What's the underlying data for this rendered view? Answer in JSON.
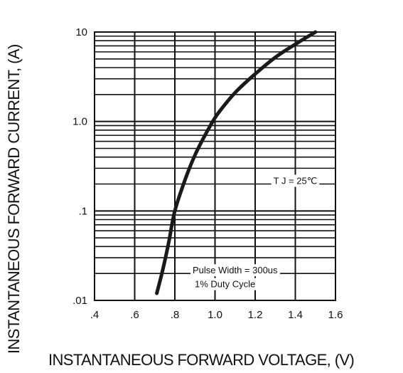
{
  "chart_data": {
    "type": "line",
    "title": "",
    "xlabel": "INSTANTANEOUS FORWARD VOLTAGE, (V)",
    "ylabel": "INSTANTANEOUS FORWARD CURRENT, (A)",
    "x_scale": "linear",
    "y_scale": "log",
    "xlim": [
      0.4,
      1.6
    ],
    "ylim": [
      0.01,
      10
    ],
    "x_ticks": [
      0.4,
      0.6,
      0.8,
      1.0,
      1.2,
      1.4,
      1.6
    ],
    "x_tick_labels": [
      ".4",
      ".6",
      ".8",
      "1.0",
      "1.2",
      "1.4",
      "1.6"
    ],
    "y_ticks": [
      0.01,
      0.1,
      1,
      10
    ],
    "y_tick_labels": [
      ".01",
      ".1",
      "1.0",
      "10"
    ],
    "grid": true,
    "series": [
      {
        "x": [
          0.71,
          0.74,
          0.77,
          0.8,
          0.85,
          0.9,
          0.95,
          1.0,
          1.05,
          1.1,
          1.15,
          1.2,
          1.3,
          1.4,
          1.5
        ],
        "y": [
          0.012,
          0.022,
          0.045,
          0.1,
          0.22,
          0.42,
          0.7,
          1.1,
          1.55,
          2.1,
          2.7,
          3.4,
          5.2,
          7.3,
          10
        ]
      }
    ],
    "annotations": [
      {
        "text": "T J = 25℃",
        "x": 1.4,
        "y": 0.2
      },
      {
        "text": "Pulse Width = 300us",
        "x": 1.1,
        "y": 0.02
      },
      {
        "text": "1% Duty Cycle",
        "x": 1.05,
        "y": 0.014
      }
    ]
  }
}
